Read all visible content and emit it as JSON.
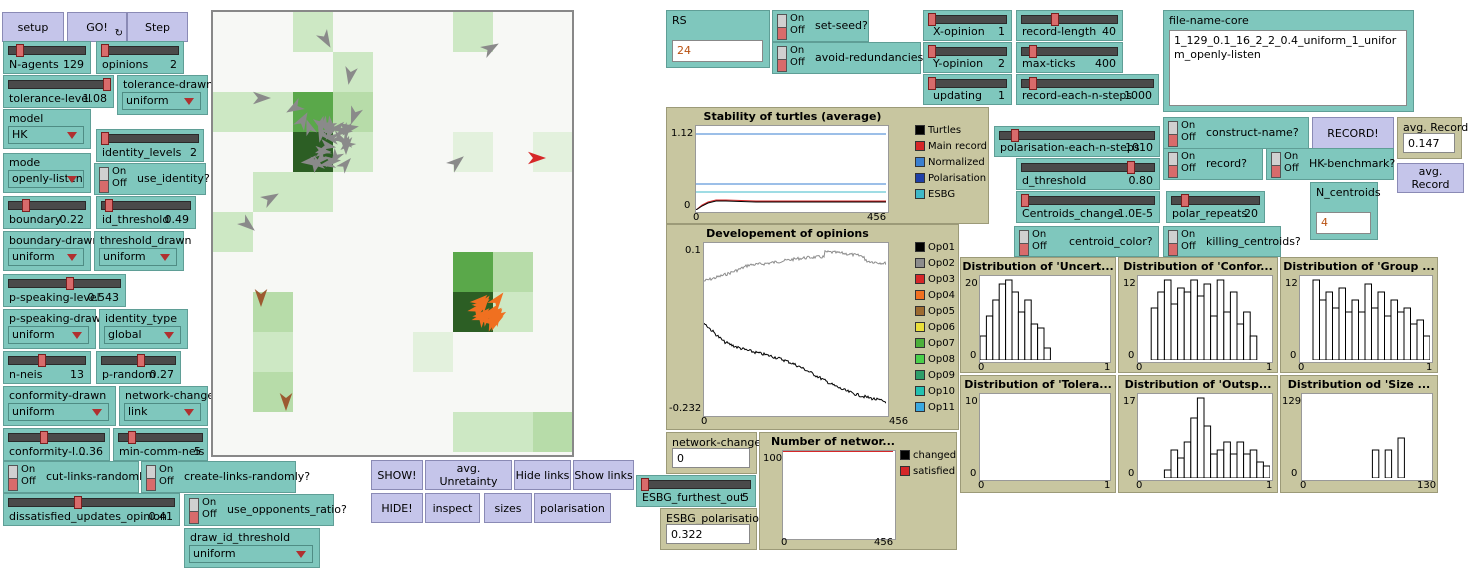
{
  "buttons": {
    "setup": "setup",
    "go": "GO!",
    "step": "Step",
    "show": "SHOW!",
    "hide": "HIDE!",
    "avg_unretainty": "avg. Unretainty",
    "inspect": "inspect",
    "hide_links": "Hide links",
    "sizes": "sizes",
    "show_links": "Show links",
    "polarisation": "polarisation",
    "record": "RECORD!",
    "avg_record": "avg. Record"
  },
  "sliders": {
    "n_agents": {
      "name": "N-agents",
      "value": "129",
      "level": 0.25
    },
    "opinions": {
      "name": "opinions",
      "value": "2",
      "level": 0.0
    },
    "tolerance_level": {
      "name": "tolerance-level",
      "value": "1.08",
      "level": 1.0
    },
    "identity_levels": {
      "name": "identity_levels",
      "value": "2",
      "level": 0.0
    },
    "boundary": {
      "name": "boundary",
      "value": "0.22",
      "level": 0.2
    },
    "id_threshold": {
      "name": "id_threshold",
      "value": "0.49",
      "level": 0.45
    },
    "p_speaking_level": {
      "name": "p-speaking-level",
      "value": "0.543",
      "level": 0.55
    },
    "n_neis": {
      "name": "n-neis",
      "value": "13",
      "level": 0.45
    },
    "p_random": {
      "name": "p-random",
      "value": "0.27",
      "level": 0.45
    },
    "conformity_level": {
      "name": "conformity-l...",
      "value": "0.36",
      "level": 0.35
    },
    "min_comm_neis": {
      "name": "min-comm-neis",
      "value": "5",
      "level": 0.12
    },
    "dissatisfied_updates": {
      "name": "dissatisfied_updates_opinion",
      "value": "0.41",
      "level": 0.4
    },
    "x_opinion": {
      "name": "X-opinion",
      "value": "1",
      "level": 0.0
    },
    "y_opinion": {
      "name": "Y-opinion",
      "value": "2",
      "level": 0.0
    },
    "updating": {
      "name": "updating",
      "value": "1",
      "level": 0.0
    },
    "record_length": {
      "name": "record-length",
      "value": "40",
      "level": 0.35
    },
    "max_ticks": {
      "name": "max-ticks",
      "value": "400",
      "level": 0.1
    },
    "record_each_n_steps": {
      "name": "record-each-n-steps",
      "value": "1000",
      "level": 0.08
    },
    "polarisation_each_n_steps": {
      "name": "polarisation-each-n-steps",
      "value": "1010",
      "level": 0.1
    },
    "d_threshold": {
      "name": "d_threshold",
      "value": "0.80",
      "level": 0.8
    },
    "centroids_change": {
      "name": "Centroids_change",
      "value": "1.0E-5",
      "level": 0.0
    },
    "polar_repeats": {
      "name": "polar_repeats",
      "value": "20",
      "level": 0.15
    },
    "esbg_furthest_out": {
      "name": "ESBG_furthest_out",
      "value": "5",
      "level": 0.0
    }
  },
  "choosers": {
    "tolerance_drawn": {
      "name": "tolerance-drawn",
      "value": "uniform"
    },
    "model": {
      "name": "model",
      "value": "HK"
    },
    "mode": {
      "name": "mode",
      "value": "openly-listen"
    },
    "boundary_drawn": {
      "name": "boundary-drawn",
      "value": "uniform"
    },
    "threshold_drawn": {
      "name": "threshold_drawn",
      "value": "uniform"
    },
    "p_speaking_drawn": {
      "name": "p-speaking-drawn",
      "value": "uniform"
    },
    "identity_type": {
      "name": "identity_type",
      "value": "global"
    },
    "conformity_drawn": {
      "name": "conformity-drawn",
      "value": "uniform"
    },
    "network_change": {
      "name": "network-change",
      "value": "link"
    },
    "draw_id_threshold": {
      "name": "draw_id_threshold",
      "value": "uniform"
    }
  },
  "switches": {
    "on": "On",
    "off": "Off",
    "use_identity": "use_identity?",
    "cut_links_randomly": "cut-links-randomly?",
    "create_links_randomly": "create-links-randomly?",
    "use_opponents_ratio": "use_opponents_ratio?",
    "set_seed": "set-seed?",
    "avoid_redundancies": "avoid-redundancies?",
    "construct_name": "construct-name?",
    "record": "record?",
    "hk_benchmark": "HK-benchmark?",
    "centroid_color": "centroid_color?",
    "killing_centroids": "killing_centroids?"
  },
  "inputs": {
    "rs": {
      "name": "RS",
      "value": "24"
    },
    "file_name_core": {
      "name": "file-name-core",
      "value": "1_129_0.1_16_2_2_0.4_uniform_1_uniform_openly-listen"
    },
    "n_centroids": {
      "name": "N_centroids",
      "value": "4"
    }
  },
  "monitors": {
    "avg_record": {
      "name": "avg. Record",
      "value": "0.147"
    },
    "network_changes": {
      "name": "network-changes",
      "value": "0"
    },
    "esbg_polarisation": {
      "name": "ESBG_polarisation",
      "value": "0.322"
    }
  },
  "plots": {
    "stability": {
      "title": "Stability of turtles (average)",
      "ymax": "1.12",
      "ymin": "0",
      "xmin": "0",
      "xmax": "456",
      "legend": [
        {
          "label": "Turtles",
          "color": "#000000"
        },
        {
          "label": "Main record",
          "color": "#d62728"
        },
        {
          "label": "Normalized",
          "color": "#3a7fd0"
        },
        {
          "label": "Polarisation",
          "color": "#1f3fa8"
        },
        {
          "label": "ESBG",
          "color": "#3fb8c8"
        }
      ]
    },
    "opinions": {
      "title": "Developement of opinions",
      "ymax": "0.1",
      "ymin": "-0.232",
      "xmin": "0",
      "xmax": "456",
      "legend": [
        {
          "label": "Op01",
          "color": "#000000"
        },
        {
          "label": "Op02",
          "color": "#8c8c8c"
        },
        {
          "label": "Op03",
          "color": "#d62728"
        },
        {
          "label": "Op04",
          "color": "#f07020"
        },
        {
          "label": "Op05",
          "color": "#9c6a30"
        },
        {
          "label": "Op06",
          "color": "#eadf3a"
        },
        {
          "label": "Op07",
          "color": "#4caf3a"
        },
        {
          "label": "Op08",
          "color": "#4ad04a"
        },
        {
          "label": "Op09",
          "color": "#2e9e6a"
        },
        {
          "label": "Op10",
          "color": "#22c0b0"
        },
        {
          "label": "Op11",
          "color": "#3aa8e0"
        }
      ]
    },
    "network": {
      "title": "Number of networ...",
      "ymax": "100",
      "xmin": "0",
      "xmax": "456",
      "legend": [
        {
          "label": "changed",
          "color": "#000000"
        },
        {
          "label": "satisfied",
          "color": "#d62728"
        }
      ]
    },
    "hist_uncert": {
      "title": "Distribution of 'Uncert...",
      "ymax": "20",
      "xmin": "0",
      "xmax": "1",
      "bars": [
        0.3,
        0.55,
        0.75,
        0.95,
        1.0,
        0.85,
        0.6,
        0.75,
        0.45,
        0.4,
        0.15,
        0,
        0,
        0,
        0,
        0,
        0,
        0,
        0,
        0
      ]
    },
    "hist_confor": {
      "title": "Distribution of 'Confor...",
      "ymax": "12",
      "xmin": "0",
      "xmax": "1",
      "bars": [
        0,
        0,
        0.65,
        0.85,
        1.0,
        0.7,
        0.9,
        0.85,
        1.0,
        0.8,
        0.95,
        0.55,
        1.0,
        0.6,
        0.85,
        0.45,
        0.6,
        0.3,
        0,
        0
      ]
    },
    "hist_group": {
      "title": "Distribution of 'Group ...",
      "ymax": "12",
      "xmin": "0",
      "xmax": "1",
      "bars": [
        0,
        0,
        1.0,
        0.75,
        0.85,
        0.65,
        0.9,
        0.6,
        0.75,
        0.6,
        0.95,
        0.65,
        0.85,
        0.55,
        0.75,
        0.6,
        0.65,
        0.45,
        0.5,
        0.3
      ]
    },
    "hist_tolera": {
      "title": "Distribution of 'Tolera...",
      "ymax": "10",
      "xmin": "0",
      "xmax": "1",
      "bars": []
    },
    "hist_outsp": {
      "title": "Distribution of 'Outsp...",
      "ymax": "17",
      "xmin": "0",
      "xmax": "1",
      "bars": [
        0,
        0,
        0,
        0,
        0.1,
        0.35,
        0.25,
        0.45,
        0.75,
        1.0,
        0.65,
        0.3,
        0.35,
        0.45,
        0.3,
        0.45,
        0.3,
        0.35,
        0.2,
        0.15
      ]
    },
    "hist_size": {
      "title": "Distribution od 'Size ...",
      "ymax": "129",
      "xmin": "0",
      "xmax": "130",
      "bars": [
        0,
        0,
        0,
        0,
        0,
        0,
        0,
        0,
        0,
        0,
        0,
        0.35,
        0,
        0.35,
        0,
        0.5,
        0,
        0,
        0,
        0
      ]
    }
  },
  "colors": {
    "turtle_grey": "#8a8a8a",
    "turtle_orange": "#f07020",
    "turtle_red": "#d62728",
    "turtle_brown": "#9c5a30"
  }
}
